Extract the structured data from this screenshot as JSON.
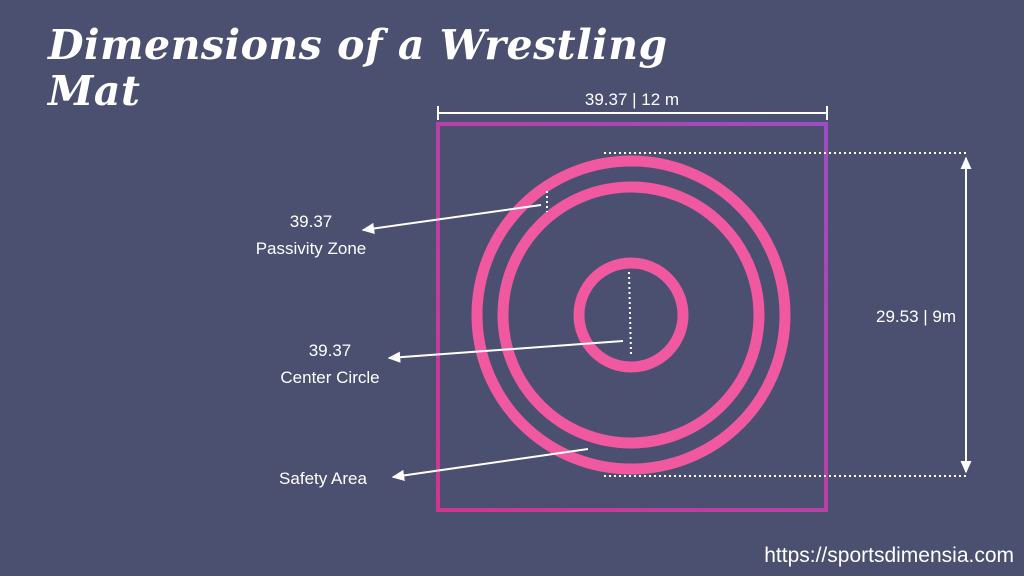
{
  "title": "Dimensions of a Wrestling Mat",
  "labels": {
    "width": "39.37 | 12 m",
    "height": "29.53 | 9m",
    "passivity_value": "39.37",
    "passivity_name": "Passivity Zone",
    "center_value": "39.37",
    "center_name": "Center Circle",
    "safety_name": "Safety Area"
  },
  "source": "https://sportsdimensia.com",
  "colors": {
    "background": "#4b5070",
    "mat_border_left": "#d6338f",
    "mat_border_right": "#9b4ec0",
    "circle": "#f0589f",
    "annotation": "#ffffff"
  }
}
